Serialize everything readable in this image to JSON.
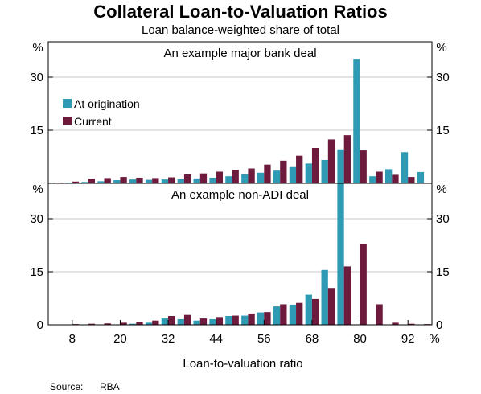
{
  "chart_data": {
    "type": "bar",
    "title": "Collateral Loan-to-Valuation Ratios",
    "subtitle": "Loan balance-weighted share of total",
    "xlabel": "Loan-to-valuation ratio",
    "x_unit": "%",
    "y_unit": "%",
    "source_label": "Source:",
    "source_value": "RBA",
    "x": [
      4,
      8,
      12,
      16,
      20,
      24,
      28,
      32,
      36,
      40,
      44,
      48,
      52,
      56,
      60,
      64,
      68,
      72,
      76,
      80,
      84,
      88,
      92,
      96
    ],
    "x_ticks": [
      8,
      20,
      32,
      44,
      56,
      68,
      80,
      92
    ],
    "xlim": [
      2,
      98
    ],
    "ylim": [
      0,
      40
    ],
    "y_ticks": [
      0,
      15,
      30
    ],
    "legend_location": "upper-left of top panel",
    "colors": {
      "origination": "#2e9ab3",
      "current": "#6d1a3c"
    },
    "series_names": [
      "At origination",
      "Current"
    ],
    "panels": [
      {
        "title": "An example major bank deal",
        "series": [
          {
            "name": "At origination",
            "values": [
              0,
              0.2,
              0.4,
              0.6,
              0.9,
              1.1,
              1.0,
              1.1,
              1.2,
              1.4,
              1.6,
              2.0,
              2.6,
              3.0,
              3.6,
              4.6,
              5.6,
              6.6,
              9.6,
              35.2,
              2.0,
              4.0,
              8.8,
              3.2
            ]
          },
          {
            "name": "Current",
            "values": [
              0.2,
              0.5,
              1.3,
              1.5,
              1.8,
              1.6,
              1.5,
              1.7,
              2.5,
              2.8,
              3.3,
              3.8,
              4.2,
              5.3,
              6.4,
              7.8,
              10.0,
              12.4,
              13.6,
              9.3,
              3.3,
              2.4,
              1.8,
              0
            ]
          }
        ]
      },
      {
        "title": "An example non-ADI deal",
        "series": [
          {
            "name": "At origination",
            "values": [
              0,
              0,
              0,
              0,
              0,
              0.3,
              0.6,
              1.8,
              1.6,
              1.2,
              1.6,
              2.5,
              2.6,
              3.5,
              5.2,
              5.7,
              8.5,
              15.5,
              40.0,
              0,
              0,
              0,
              0,
              0
            ]
          },
          {
            "name": "Current",
            "values": [
              0.1,
              0.2,
              0.3,
              0.4,
              0.6,
              0.9,
              1.2,
              2.5,
              2.8,
              1.8,
              2.2,
              2.6,
              3.2,
              3.6,
              5.8,
              6.2,
              7.3,
              10.4,
              16.5,
              22.8,
              5.8,
              0.6,
              0.3,
              0.2
            ]
          }
        ]
      }
    ]
  }
}
